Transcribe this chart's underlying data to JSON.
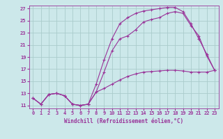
{
  "xlabel": "Windchill (Refroidissement éolien,°C)",
  "bg_color": "#cce8ea",
  "grid_color": "#aacccc",
  "line_color": "#993399",
  "xlim": [
    -0.5,
    23.5
  ],
  "ylim": [
    10.5,
    27.5
  ],
  "xticks": [
    0,
    1,
    2,
    3,
    4,
    5,
    6,
    7,
    8,
    9,
    10,
    11,
    12,
    13,
    14,
    15,
    16,
    17,
    18,
    19,
    20,
    21,
    22,
    23
  ],
  "yticks": [
    11,
    13,
    15,
    17,
    19,
    21,
    23,
    25,
    27
  ],
  "curve1_x": [
    0,
    1,
    2,
    3,
    4,
    5,
    6,
    7,
    8,
    9,
    10,
    11,
    12,
    13,
    14,
    15,
    16,
    17,
    18,
    19,
    20,
    21,
    22,
    23
  ],
  "curve1_y": [
    12.2,
    11.2,
    12.8,
    13.0,
    12.6,
    11.2,
    11.0,
    11.2,
    13.2,
    16.5,
    20.0,
    22.0,
    22.5,
    23.5,
    24.8,
    25.2,
    25.5,
    26.2,
    26.5,
    26.2,
    24.2,
    22.5,
    19.2,
    16.8
  ],
  "curve2_x": [
    0,
    1,
    2,
    3,
    4,
    5,
    6,
    7,
    8,
    9,
    10,
    11,
    12,
    13,
    14,
    15,
    16,
    17,
    18,
    19,
    20,
    21,
    22,
    23
  ],
  "curve2_y": [
    12.2,
    11.2,
    12.8,
    13.0,
    12.6,
    11.2,
    11.0,
    11.2,
    14.5,
    18.5,
    22.0,
    24.5,
    25.5,
    26.2,
    26.6,
    26.8,
    27.0,
    27.2,
    27.2,
    26.5,
    24.5,
    22.0,
    19.5,
    16.8
  ],
  "curve3_x": [
    0,
    1,
    2,
    3,
    4,
    5,
    6,
    7,
    8,
    9,
    10,
    11,
    12,
    13,
    14,
    15,
    16,
    17,
    18,
    19,
    20,
    21,
    22,
    23
  ],
  "curve3_y": [
    12.2,
    11.2,
    12.8,
    13.0,
    12.6,
    11.2,
    11.0,
    11.2,
    13.2,
    13.8,
    14.5,
    15.2,
    15.8,
    16.2,
    16.5,
    16.6,
    16.7,
    16.8,
    16.8,
    16.7,
    16.5,
    16.5,
    16.5,
    16.8
  ]
}
